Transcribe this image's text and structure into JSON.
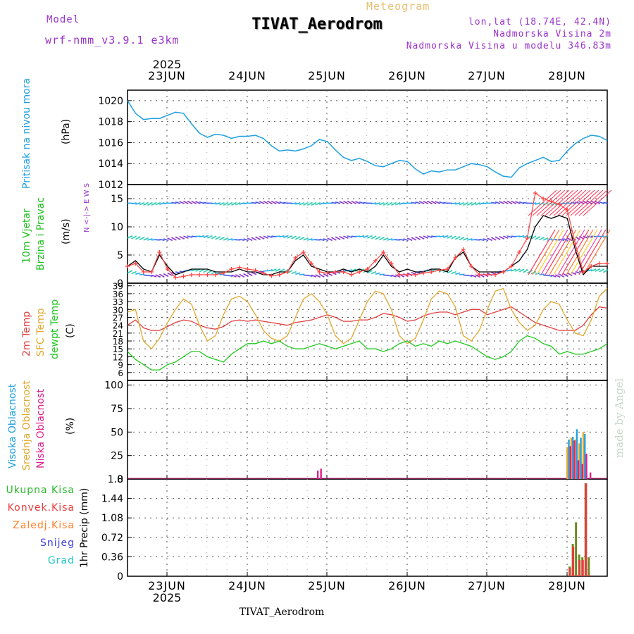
{
  "header": {
    "model_label": "Model",
    "model_name": "wrf-nmm_v3.9.1  e3km",
    "meteogram_label": "Meteogram",
    "station_title": "TIVAT_Aerodrom",
    "lonlat": "lon,lat (18.74E, 42.4N)",
    "height": "Nadmorska Visina 2m",
    "model_height": "Nadmorska Visina u modelu 346.83m",
    "year": "2025",
    "days": [
      "23JUN",
      "24JUN",
      "25JUN",
      "26JUN",
      "27JUN",
      "28JUN"
    ],
    "footer_station": "TIVAT_Aerodrom",
    "credit": "made by Angel"
  },
  "colors": {
    "pressure": "#1f9fe0",
    "wind_speed": "#000000",
    "gust": "#ff4040",
    "temp2m": "#e04040",
    "sfc_temp": "#e0a830",
    "dewpoint": "#20c820",
    "high_cloud": "#1f9fe0",
    "mid_cloud": "#e0a830",
    "low_cloud": "#e0208a",
    "total_precip": "#2bb82b",
    "conv_precip": "#e83c3c",
    "freezing_precip": "#ff7f2a",
    "snow": "#4040e0",
    "graupel": "#20c8c8",
    "label_purple": "#9933cc"
  },
  "chart_data": [
    {
      "type": "line",
      "name": "pressure",
      "ylabel": "Pritisak na nivou mora",
      "unit": "(hPa)",
      "ylim": [
        1012,
        1021
      ],
      "yticks": [
        1012,
        1014,
        1016,
        1018,
        1020
      ],
      "x_days": [
        0,
        0.1,
        0.2,
        0.3,
        0.4,
        0.5,
        0.6,
        0.7,
        0.8,
        0.9,
        1.0,
        1.1,
        1.2,
        1.3,
        1.4,
        1.5,
        1.6,
        1.7,
        1.8,
        1.9,
        2.0,
        2.1,
        2.2,
        2.3,
        2.4,
        2.5,
        2.6,
        2.7,
        2.8,
        2.9,
        3.0,
        3.1,
        3.2,
        3.3,
        3.4,
        3.5,
        3.6,
        3.7,
        3.8,
        3.9,
        4.0,
        4.1,
        4.2,
        4.3,
        4.4,
        4.5,
        4.6,
        4.7,
        4.8,
        4.9,
        5.0,
        5.1,
        5.2,
        5.3,
        5.4,
        5.5,
        5.6,
        5.7,
        5.8,
        5.9,
        6.0
      ],
      "values": [
        1020.0,
        1018.8,
        1018.2,
        1018.3,
        1018.3,
        1018.6,
        1018.9,
        1018.8,
        1017.8,
        1016.9,
        1016.5,
        1016.8,
        1016.7,
        1016.4,
        1016.6,
        1016.6,
        1016.7,
        1016.4,
        1015.7,
        1015.2,
        1015.3,
        1015.2,
        1015.4,
        1015.7,
        1016.3,
        1016.1,
        1015.3,
        1014.6,
        1014.3,
        1014.5,
        1014.2,
        1013.8,
        1013.7,
        1014.0,
        1014.3,
        1014.2,
        1013.5,
        1013.0,
        1013.3,
        1013.2,
        1013.4,
        1013.4,
        1013.7,
        1014.0,
        1013.9,
        1013.7,
        1013.2,
        1012.8,
        1012.7,
        1013.6,
        1014.0,
        1014.3,
        1014.6,
        1014.2,
        1014.3,
        1015.2,
        1015.9,
        1016.4,
        1016.7,
        1016.6,
        1016.2
      ]
    },
    {
      "type": "line",
      "name": "wind",
      "ylabel": "10m Vjetar Brzina i Pravac",
      "unit": "(m/s)",
      "ylim": [
        0,
        17.5
      ],
      "yticks": [
        0,
        5,
        10,
        15
      ],
      "compass": "N <-|-> E  W  S",
      "x_days": [
        0,
        0.1,
        0.2,
        0.3,
        0.4,
        0.5,
        0.6,
        0.7,
        0.8,
        0.9,
        1.0,
        1.1,
        1.2,
        1.3,
        1.4,
        1.5,
        1.6,
        1.7,
        1.8,
        1.9,
        2.0,
        2.1,
        2.2,
        2.3,
        2.4,
        2.5,
        2.6,
        2.7,
        2.8,
        2.9,
        3.0,
        3.1,
        3.2,
        3.3,
        3.4,
        3.5,
        3.6,
        3.7,
        3.8,
        3.9,
        4.0,
        4.1,
        4.2,
        4.3,
        4.4,
        4.5,
        4.6,
        4.7,
        4.8,
        4.9,
        5.0,
        5.1,
        5.2,
        5.3,
        5.4,
        5.5,
        5.6,
        5.7,
        5.8,
        5.9,
        6.0
      ],
      "series": [
        {
          "name": "wind speed",
          "values": [
            3,
            4,
            2.5,
            2,
            5,
            3,
            1.5,
            2,
            2.5,
            2.5,
            2.5,
            2,
            2,
            2,
            2.5,
            2,
            2,
            1.5,
            1.5,
            2,
            2,
            4,
            5,
            3,
            2.5,
            2,
            2,
            2.5,
            2,
            2.5,
            2,
            3,
            5,
            3,
            2,
            2.5,
            2,
            2,
            2.5,
            2.5,
            2,
            4.5,
            5.5,
            3,
            2,
            2,
            2,
            2,
            3,
            4,
            6,
            10,
            12,
            11.5,
            12,
            11.5,
            6,
            1.5,
            3,
            3,
            3
          ]
        },
        {
          "name": "gust",
          "values": [
            3,
            3.5,
            2,
            2,
            5.5,
            2.5,
            1,
            1.2,
            1.5,
            1.5,
            1.5,
            1.5,
            1.8,
            2.5,
            2.8,
            2.5,
            2.3,
            1.8,
            1.3,
            1.5,
            2,
            4.5,
            5.5,
            3.5,
            2,
            1.8,
            2,
            2,
            1.5,
            2,
            2.5,
            4,
            5.5,
            3.5,
            1.5,
            1.5,
            1.5,
            1.8,
            2,
            2.3,
            2.5,
            4.5,
            6,
            3,
            1.5,
            1.5,
            1.5,
            2,
            3,
            5.5,
            8,
            16,
            15,
            14.5,
            14,
            13,
            7,
            2,
            3,
            3.5,
            3.5
          ]
        }
      ]
    },
    {
      "type": "line",
      "name": "temperature",
      "ylabel": "2m Temp / SFC Temp / dewpt Temp",
      "unit": "(C)",
      "ylim": [
        3,
        40
      ],
      "yticks": [
        6,
        9,
        12,
        15,
        18,
        21,
        24,
        27,
        30,
        33,
        36,
        39
      ],
      "x_days": [
        0,
        0.1,
        0.2,
        0.3,
        0.4,
        0.5,
        0.6,
        0.7,
        0.8,
        0.9,
        1.0,
        1.1,
        1.2,
        1.3,
        1.4,
        1.5,
        1.6,
        1.7,
        1.8,
        1.9,
        2.0,
        2.1,
        2.2,
        2.3,
        2.4,
        2.5,
        2.6,
        2.7,
        2.8,
        2.9,
        3.0,
        3.1,
        3.2,
        3.3,
        3.4,
        3.5,
        3.6,
        3.7,
        3.8,
        3.9,
        4.0,
        4.1,
        4.2,
        4.3,
        4.4,
        4.5,
        4.6,
        4.7,
        4.8,
        4.9,
        5.0,
        5.1,
        5.2,
        5.3,
        5.4,
        5.5,
        5.6,
        5.7,
        5.8,
        5.9,
        6.0
      ],
      "series": [
        {
          "name": "2m Temp",
          "values": [
            24,
            26,
            23,
            22,
            22,
            23.5,
            25,
            26,
            25.5,
            24,
            23,
            22.5,
            23.5,
            25.5,
            26,
            25.5,
            26,
            25.5,
            25,
            24.5,
            24,
            25,
            25.5,
            26,
            27,
            28,
            27,
            25.5,
            25.5,
            26,
            26,
            27,
            28.5,
            28,
            27,
            25.5,
            26,
            27.5,
            28.5,
            29,
            29,
            28,
            29,
            30,
            30,
            28,
            29,
            30,
            31,
            29,
            27,
            25,
            24,
            23,
            22,
            22,
            22,
            24,
            28,
            31,
            30.5
          ]
        },
        {
          "name": "SFC Temp",
          "values": [
            29,
            30,
            18,
            15,
            19,
            25,
            30,
            34,
            32,
            24,
            18,
            20,
            28,
            34,
            35,
            33,
            28,
            22,
            19,
            18,
            20,
            27,
            34,
            36,
            33,
            28,
            20,
            17,
            19,
            26,
            33,
            37,
            36,
            30,
            20,
            17,
            19,
            26,
            34,
            37,
            36,
            31,
            20,
            18,
            22,
            30,
            37,
            38,
            30,
            25,
            22,
            24,
            30,
            33,
            32,
            26,
            21,
            20,
            26,
            35,
            38
          ]
        },
        {
          "name": "dewpt Temp",
          "values": [
            14,
            11,
            9,
            7,
            7,
            9,
            10,
            12,
            14,
            14,
            12,
            11,
            10,
            13,
            15,
            17,
            17,
            18,
            17,
            18,
            16,
            15,
            15,
            16,
            17,
            16,
            15,
            16,
            17,
            18,
            15,
            15,
            14,
            15,
            17,
            18,
            16,
            17,
            16,
            18,
            17,
            18,
            17,
            16,
            14,
            12,
            11,
            12,
            14,
            18,
            20,
            19,
            17,
            16,
            13,
            14,
            13,
            13,
            14,
            15,
            17
          ]
        }
      ]
    },
    {
      "type": "bar",
      "name": "cloud cover",
      "ylabel": "Visoka / Srednja / Niska Oblacnost",
      "unit": "(%)",
      "ylim": [
        0,
        105
      ],
      "yticks": [
        0,
        25,
        50,
        75,
        100
      ],
      "series": [
        {
          "name": "Visoka Oblacnost",
          "x_days": [
            5.52,
            5.57,
            5.62,
            5.67,
            5.72
          ],
          "values": [
            42,
            45,
            53,
            44,
            48
          ]
        },
        {
          "name": "Srednja Oblacnost",
          "x_days": [
            5.5,
            5.55,
            5.6,
            5.65,
            5.7
          ],
          "values": [
            34,
            44,
            42,
            38,
            50
          ]
        },
        {
          "name": "Niska Oblacnost",
          "x_days": [
            2.38,
            2.42,
            5.54,
            5.59,
            5.64,
            5.69,
            5.74,
            5.79
          ],
          "values": [
            9,
            11,
            35,
            41,
            20,
            16,
            27,
            7
          ]
        }
      ]
    },
    {
      "type": "bar",
      "name": "precipitation",
      "ylabel": "1hr Precip",
      "unit": "(mm)",
      "ylim": [
        0,
        1.8
      ],
      "yticks": [
        0,
        0.36,
        0.72,
        1.08,
        1.44,
        1.8
      ],
      "legend": [
        "Ukupna Kisa",
        "Konvek.Kisa",
        "Zaledj.Kisa",
        "Snijeg",
        "Grad"
      ],
      "series": [
        {
          "name": "Ukupna Kisa",
          "x_days": [
            5.53,
            5.57,
            5.61,
            5.65,
            5.69,
            5.73,
            5.77
          ],
          "values": [
            0.18,
            0.6,
            1.0,
            0.4,
            0.35,
            1.72,
            0.35
          ]
        },
        {
          "name": "Konvek.Kisa",
          "x_days": [
            5.535,
            5.575,
            5.615,
            5.655,
            5.695,
            5.735,
            5.775
          ],
          "values": [
            0.16,
            0.55,
            0.02,
            0.3,
            0.3,
            1.72,
            0.02
          ]
        }
      ]
    }
  ]
}
